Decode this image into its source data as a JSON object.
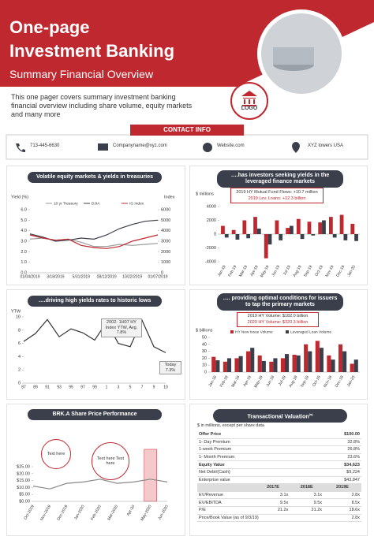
{
  "header": {
    "title_line1": "One-page",
    "title_line2": "Investment Banking",
    "subtitle": "Summary Financial Overview",
    "logo": "LOGO"
  },
  "intro": "This one pager covers summary investment banking financial overview including share volume, equity markets and many more",
  "contact": {
    "title": "CONTACT INFO",
    "phone": "713-445-6630",
    "email": "Companyname@xyz.com",
    "website": "Website.com",
    "address": "XYZ towers USA"
  },
  "chart_data": [
    {
      "type": "line",
      "title": "Volatile equity markets & yields in treasuries",
      "y_label": "Yield (%)",
      "y2_label": "Index",
      "categories": [
        "01/04/2019",
        null,
        "3/18/2019",
        null,
        "5/31/2019",
        null,
        "08/12/2019",
        null,
        "10/22/2019",
        null,
        "01/07/2019"
      ],
      "series": [
        {
          "name": "10 yr Treasury",
          "color": "#9a9a9a",
          "values": [
            3.2,
            3.3,
            3.1,
            3.2,
            2.9,
            2.5,
            2.5,
            2.7,
            2.6,
            2.7,
            2.8
          ]
        },
        {
          "name": "DJIA",
          "color": "#3a3f4b",
          "axis": "y2",
          "values": [
            3700,
            3400,
            3000,
            3100,
            3300,
            3200,
            3600,
            4200,
            4600,
            4900,
            5000
          ]
        },
        {
          "name": "IG Index",
          "color": "#c0282f",
          "axis": "y2",
          "values": [
            3600,
            3300,
            3100,
            3200,
            2600,
            2400,
            2300,
            2500,
            3000,
            3300,
            3600
          ]
        }
      ],
      "ylim": [
        0,
        6
      ],
      "yticks": [
        {
          "value": 0,
          "label": "0.0"
        },
        {
          "value": 1,
          "label": "1.0"
        },
        {
          "value": 2,
          "label": "2.0"
        },
        {
          "value": 3,
          "label": "3.0"
        },
        {
          "value": 4,
          "label": "4.0"
        },
        {
          "value": 5,
          "label": "5.0"
        },
        {
          "value": 6,
          "label": "6.0"
        }
      ],
      "y2lim": [
        0,
        6000
      ],
      "y2ticks": [
        0,
        1000,
        2000,
        3000,
        4000,
        5000,
        6000
      ]
    },
    {
      "type": "bar",
      "title": "….has investors seeking yields in the leveraged finance markets",
      "y_label": "$ millions",
      "annotations": [
        "2019 HY Mutual Fund Flows: +10.7 million",
        "2019 Lev. Loans: +12.3 billion"
      ],
      "categories": [
        "Jan-19",
        "Feb-19",
        "Mar-19",
        "Apr-19",
        "May-19",
        "Jun-19",
        "Jul-19",
        "Aug-19",
        "Sep-19",
        "Oct-19",
        "Nov-19",
        "Dec-19",
        "Jan-20"
      ],
      "series": [
        {
          "color": "#c0282f",
          "values": [
            1200,
            600,
            2000,
            2500,
            -3500,
            2000,
            900,
            2200,
            1800,
            1700,
            2500,
            2800,
            1500
          ]
        },
        {
          "color": "#3a3f4b",
          "values": [
            -500,
            -800,
            -600,
            800,
            -1500,
            -900,
            1200,
            -700,
            -200,
            2000,
            -500,
            -900,
            -1000
          ]
        }
      ],
      "ylim": [
        -4000,
        4000
      ],
      "yticks": [
        -4000,
        -2000,
        0,
        2000,
        4000
      ]
    },
    {
      "type": "line",
      "title": "….driving high yields rates to historic lows",
      "y_label": "YTW",
      "annotations": [
        "2002- 1H07 HY Index YTW, Avg. 7.8%",
        "Today 7.3%"
      ],
      "categories": [
        "87",
        "89",
        "91",
        "93",
        "95",
        "97",
        "99",
        "1",
        "3",
        "5",
        "7",
        "9",
        "10"
      ],
      "series": [
        {
          "color": "#333333",
          "values": [
            6.3,
            7.5,
            9.6,
            7.0,
            8.2,
            7.6,
            6.5,
            9.2,
            6.0,
            5.5,
            9.5,
            5.5,
            4.6
          ]
        }
      ],
      "ylim": [
        0,
        10
      ],
      "yticks": [
        0,
        2,
        4,
        6,
        8,
        10
      ]
    },
    {
      "type": "bar",
      "title": "…. providing optimal conditions for issuers to tap the primary markets",
      "y_label": "$ billions",
      "annotations": [
        "2019 HY Volume: $182.0 billion",
        "2020 HY Volume: $320.3 billion"
      ],
      "categories": [
        "Jan-19",
        "Feb-19",
        "Mar-19",
        "Apr-19",
        "May-19",
        "Jun-19",
        "Jul-19",
        "Aug-19",
        "Sep-19",
        "Oct-19",
        "Nov-19",
        "Dec-19",
        "Jan-20"
      ],
      "series": [
        {
          "name": "HY New Issue Volume",
          "color": "#c0282f",
          "values": [
            22,
            15,
            20,
            30,
            24,
            15,
            20,
            25,
            40,
            45,
            24,
            40,
            12
          ]
        },
        {
          "name": "Leveraged Loan Volume",
          "color": "#3a3f4b",
          "values": [
            17,
            20,
            23,
            35,
            16,
            20,
            26,
            24,
            30,
            35,
            18,
            30,
            18
          ]
        }
      ],
      "ylim": [
        0,
        50
      ],
      "yticks": [
        0,
        10,
        20,
        30,
        40,
        50
      ]
    },
    {
      "type": "line",
      "title": "BRK.A  Share Price Performance",
      "annotations": [
        "Text here",
        "Text here Text here"
      ],
      "categories": [
        "Oct-2019",
        "Nov-2019",
        "Dec-2019",
        "Jan-2020",
        "Feb-2020",
        "Mar-2020",
        "Apr-20",
        "May-2020",
        "Jun-2020"
      ],
      "series": [
        {
          "color": "#8a8a8a",
          "values": [
            11,
            9,
            13,
            14,
            16,
            13,
            14,
            16,
            14
          ]
        }
      ],
      "ylim": [
        0,
        25
      ],
      "yticks": [
        {
          "value": 0,
          "label": "$0.00"
        },
        {
          "value": 5,
          "label": "$5.00"
        },
        {
          "value": 10,
          "label": "$10.00"
        },
        {
          "value": 15,
          "label": "$15.00"
        },
        {
          "value": 20,
          "label": "$20.00"
        },
        {
          "value": 25,
          "label": "$25.00"
        }
      ]
    }
  ],
  "valuation": {
    "title": "Transactional Valuation",
    "title_note": "(a)",
    "note": "$ in millions, except per share data",
    "rows": [
      [
        "Offer Price",
        "$100.00"
      ],
      [
        "1- Day Premium",
        "32.8%"
      ],
      [
        "1-week Premium",
        "26.8%"
      ],
      [
        "1- Month Premium",
        "23.6%"
      ],
      [
        "Equity Value",
        "$34,623"
      ],
      [
        "Net Debt/(Cash)",
        "$9,224"
      ],
      [
        "Enterprise value",
        "$43,847"
      ]
    ],
    "multiples_header": [
      "2017E",
      "2018E",
      "2019E"
    ],
    "multiples": [
      [
        "EV/Revenue",
        "3.1x",
        "3.1x",
        "2.8x"
      ],
      [
        "EV/EBITDA",
        "9.5x",
        "9.5x",
        "8.5x"
      ],
      [
        "P/E",
        "21.2x",
        "21.2x",
        "18.6x"
      ]
    ],
    "last_row": [
      "Price/Book Value (as of 9/3/19)",
      "2.8x"
    ]
  }
}
